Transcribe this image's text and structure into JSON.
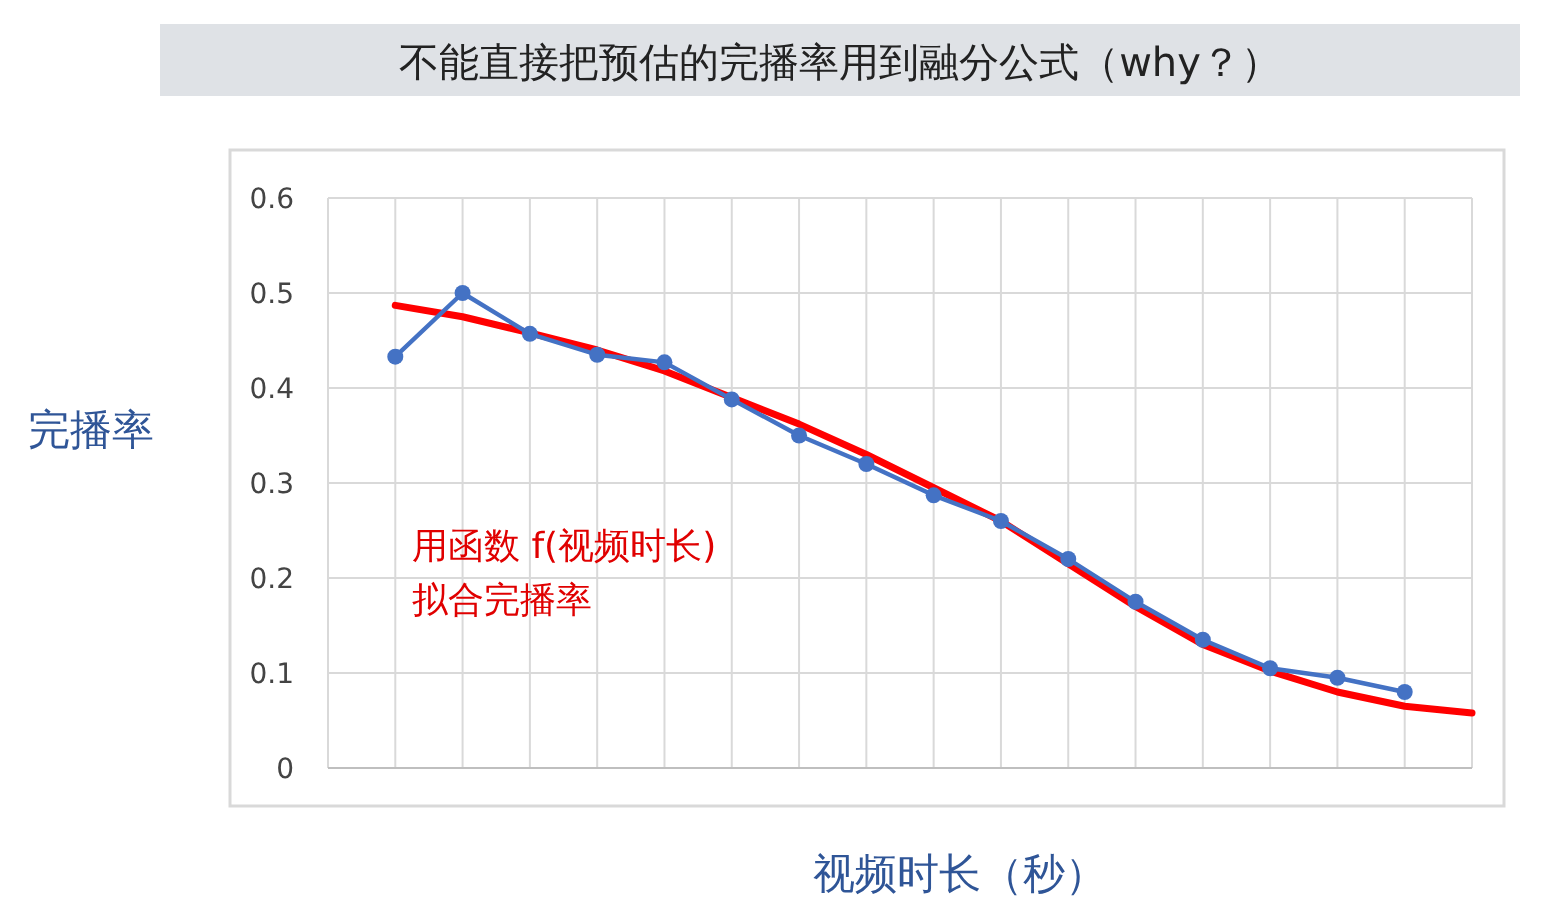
{
  "chart_data": {
    "type": "line",
    "title": "不能直接把预估的完播率用到融分公式（why？）",
    "xlabel": "视频时长（秒）",
    "ylabel": "完播率",
    "annotations": [
      "用函数 f(视频时长)\n拟合完播率"
    ],
    "categories": [
      null,
      null,
      null,
      null,
      null,
      null,
      null,
      null,
      null,
      null,
      null,
      null,
      null,
      null,
      null,
      null,
      null,
      null
    ],
    "ylim": [
      0,
      0.6
    ],
    "yticks": [
      0,
      0.1,
      0.2,
      0.3,
      0.4,
      0.5,
      0.6
    ],
    "tick_labels": "y",
    "grid": true,
    "series": [
      {
        "color": "#4472c4",
        "marker": "circle",
        "values": [
          null,
          0.433,
          0.5,
          0.457,
          0.435,
          0.427,
          0.388,
          0.35,
          0.32,
          0.287,
          0.26,
          0.22,
          0.175,
          0.135,
          0.105,
          0.095,
          0.08,
          null
        ]
      },
      {
        "color": "#ff0000",
        "marker": "none",
        "values": [
          null,
          0.487,
          0.475,
          0.458,
          0.44,
          0.418,
          0.39,
          0.362,
          0.33,
          0.295,
          0.26,
          0.215,
          0.17,
          0.13,
          0.102,
          0.08,
          0.065,
          0.058
        ]
      }
    ]
  }
}
